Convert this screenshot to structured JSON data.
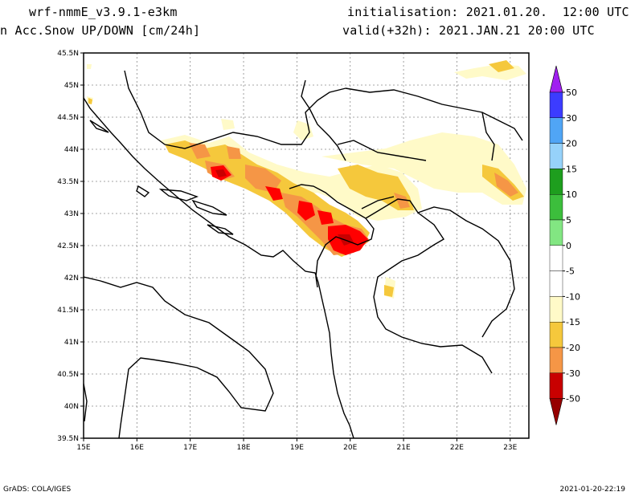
{
  "header": {
    "model": "wrf-nmmE_v3.9.1-e3km",
    "variable": "n Acc.Snow UP/DOWN [cm/24h]",
    "initialisation": "initialisation: 2021.01.20.  12:00 UTC",
    "valid": "valid(+32h): 2021.JAN.21 20:00 UTC"
  },
  "map": {
    "lon_ticks": [
      "15E",
      "16E",
      "17E",
      "18E",
      "19E",
      "20E",
      "21E",
      "22E",
      "23E"
    ],
    "lat_ticks": [
      "45.5N",
      "45N",
      "44.5N",
      "44N",
      "43.5N",
      "43N",
      "42.5N",
      "42N",
      "41.5N",
      "41N",
      "40.5N",
      "40N",
      "39.5N"
    ],
    "extent": {
      "lon": [
        15,
        23.35
      ],
      "lat": [
        39.5,
        45.5
      ]
    },
    "grid": true
  },
  "colorbar": {
    "labels": [
      "50",
      "30",
      "20",
      "15",
      "10",
      "5",
      "0",
      "-5",
      "-10",
      "-15",
      "-20",
      "-30",
      "-50"
    ],
    "colors": {
      "violet": "#a020f0",
      "blue": "#3c3cff",
      "mid_blue": "#50a5f5",
      "light_blue": "#96d2fa",
      "dark_green": "#1e9e1e",
      "green": "#3cbe3c",
      "light_green": "#82e682",
      "white": "#ffffff",
      "pale_yellow": "#fffac8",
      "orange_yellow": "#f5c83c",
      "orange": "#f59646",
      "red": "#ff0000",
      "dark_red": "#c80000",
      "maroon": "#960000"
    }
  },
  "footer": {
    "left": "GrADS: COLA/IGES",
    "right": "2021-01-20-22:19"
  }
}
